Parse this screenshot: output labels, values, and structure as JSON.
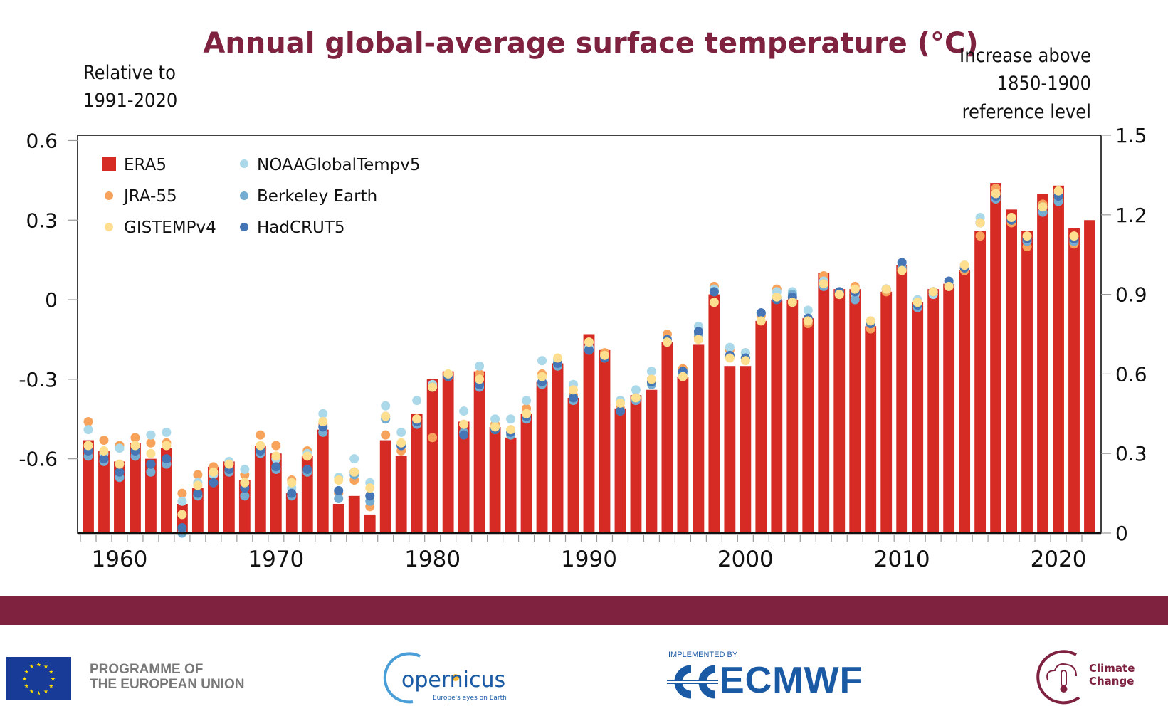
{
  "chart_data": {
    "type": "bar",
    "title": "Annual global-average surface temperature (°C)",
    "left_axis_label_lines": [
      "Relative to",
      "1991-2020"
    ],
    "right_axis_label_lines": [
      "Increase above",
      "1850-1900",
      "reference level"
    ],
    "xlabel": "",
    "ylabel": "Relative to 1991-2020",
    "ylim": [
      -0.88,
      0.62
    ],
    "y_ticks": [
      0.6,
      0.3,
      0,
      -0.3,
      -0.6
    ],
    "y_tick_labels": [
      "0.6",
      "0.3",
      "0",
      "-0.3",
      "-0.6"
    ],
    "right_axis_offset": 0.88,
    "right_y_ticks": [
      1.5,
      1.2,
      0.9,
      0.6,
      0.3,
      0
    ],
    "right_y_tick_labels": [
      "1.5",
      "1.2",
      "0.9",
      "0.6",
      "0.3",
      "0"
    ],
    "x_tick_labels": [
      "1960",
      "1970",
      "1980",
      "1990",
      "2000",
      "2010",
      "2020"
    ],
    "x_ticks": [
      1960,
      1970,
      1980,
      1990,
      2000,
      2010,
      2020
    ],
    "grid": false,
    "legend_position": "top-left",
    "years": [
      1958,
      1959,
      1960,
      1961,
      1962,
      1963,
      1964,
      1965,
      1966,
      1967,
      1968,
      1969,
      1970,
      1971,
      1972,
      1973,
      1974,
      1975,
      1976,
      1977,
      1978,
      1979,
      1980,
      1981,
      1982,
      1983,
      1984,
      1985,
      1986,
      1987,
      1988,
      1989,
      1990,
      1991,
      1992,
      1993,
      1994,
      1995,
      1996,
      1997,
      1998,
      1999,
      2000,
      2001,
      2002,
      2003,
      2004,
      2005,
      2006,
      2007,
      2008,
      2009,
      2010,
      2011,
      2012,
      2013,
      2014,
      2015,
      2016,
      2017,
      2018,
      2019,
      2020,
      2021,
      2022
    ],
    "series": [
      {
        "name": "ERA5",
        "kind": "bar",
        "color": "#d52b24",
        "values": [
          -0.53,
          -0.57,
          -0.61,
          -0.54,
          -0.6,
          -0.56,
          -0.77,
          -0.71,
          -0.63,
          -0.61,
          -0.68,
          -0.55,
          -0.58,
          -0.73,
          -0.59,
          -0.49,
          -0.77,
          -0.74,
          -0.81,
          -0.53,
          -0.59,
          -0.43,
          -0.3,
          -0.27,
          -0.46,
          -0.27,
          -0.48,
          -0.52,
          -0.43,
          -0.31,
          -0.24,
          -0.37,
          -0.13,
          -0.19,
          -0.41,
          -0.36,
          -0.34,
          -0.16,
          -0.29,
          -0.17,
          0.02,
          -0.25,
          -0.25,
          -0.08,
          0.0,
          0.0,
          -0.07,
          0.1,
          0.04,
          0.04,
          -0.1,
          0.03,
          0.13,
          -0.01,
          0.04,
          0.06,
          0.11,
          0.26,
          0.44,
          0.34,
          0.26,
          0.4,
          0.43,
          0.27,
          0.3
        ]
      },
      {
        "name": "JRA-55",
        "kind": "dot",
        "color": "#f7a35c",
        "values": [
          -0.46,
          -0.53,
          -0.55,
          -0.52,
          -0.54,
          -0.54,
          -0.73,
          -0.66,
          -0.63,
          -0.62,
          -0.66,
          -0.51,
          -0.55,
          -0.68,
          -0.57,
          -0.47,
          -0.73,
          -0.68,
          -0.78,
          -0.51,
          -0.57,
          -0.45,
          -0.52,
          -0.29,
          -0.47,
          -0.28,
          -0.47,
          -0.51,
          -0.41,
          -0.28,
          -0.25,
          -0.36,
          -0.16,
          -0.2,
          -0.41,
          -0.37,
          -0.3,
          -0.13,
          -0.26,
          -0.14,
          0.05,
          -0.19,
          -0.2,
          -0.06,
          0.04,
          0.0,
          -0.09,
          0.09,
          0.03,
          0.05,
          -0.11,
          0.03,
          0.11,
          -0.01,
          0.03,
          0.05,
          0.11,
          0.24,
          0.42,
          0.29,
          0.2,
          0.36,
          0.38,
          0.21,
          null
        ]
      },
      {
        "name": "GISTEMPv4",
        "kind": "dot",
        "color": "#fddf8f",
        "values": [
          -0.55,
          -0.57,
          -0.62,
          -0.55,
          -0.58,
          -0.55,
          -0.81,
          -0.7,
          -0.65,
          -0.62,
          -0.69,
          -0.55,
          -0.59,
          -0.69,
          -0.59,
          -0.46,
          -0.68,
          -0.65,
          -0.71,
          -0.44,
          -0.54,
          -0.45,
          -0.33,
          -0.28,
          -0.47,
          -0.3,
          -0.48,
          -0.49,
          -0.43,
          -0.29,
          -0.22,
          -0.34,
          -0.16,
          -0.21,
          -0.39,
          -0.37,
          -0.3,
          -0.16,
          -0.29,
          -0.15,
          -0.01,
          -0.22,
          -0.23,
          -0.08,
          0.01,
          -0.01,
          -0.08,
          0.06,
          0.02,
          0.04,
          -0.08,
          0.04,
          0.11,
          -0.01,
          0.03,
          0.05,
          0.13,
          0.29,
          0.4,
          0.31,
          0.24,
          0.35,
          0.41,
          0.24,
          null
        ]
      },
      {
        "name": "NOAAGlobalTempv5",
        "kind": "dot",
        "color": "#abd9e9",
        "values": [
          -0.49,
          -0.58,
          -0.56,
          -0.55,
          -0.51,
          -0.5,
          -0.76,
          -0.69,
          -0.66,
          -0.61,
          -0.64,
          -0.57,
          -0.6,
          -0.71,
          -0.58,
          -0.43,
          -0.67,
          -0.6,
          -0.69,
          -0.4,
          -0.5,
          -0.38,
          -0.32,
          -0.29,
          -0.42,
          -0.25,
          -0.45,
          -0.45,
          -0.38,
          -0.23,
          -0.23,
          -0.32,
          -0.18,
          -0.22,
          -0.38,
          -0.34,
          -0.27,
          -0.15,
          -0.28,
          -0.1,
          0.04,
          -0.18,
          -0.2,
          -0.05,
          0.03,
          0.03,
          -0.04,
          0.07,
          0.03,
          0.02,
          -0.08,
          0.04,
          0.12,
          0.0,
          0.02,
          0.06,
          0.13,
          0.31,
          0.38,
          0.3,
          0.23,
          0.33,
          0.4,
          0.22,
          null
        ]
      },
      {
        "name": "Berkeley Earth",
        "kind": "dot",
        "color": "#74add1",
        "values": [
          -0.59,
          -0.61,
          -0.67,
          -0.59,
          -0.65,
          -0.62,
          -0.88,
          -0.74,
          -0.69,
          -0.65,
          -0.74,
          -0.58,
          -0.64,
          -0.74,
          -0.65,
          -0.5,
          -0.75,
          -0.66,
          -0.76,
          -0.45,
          -0.55,
          -0.47,
          -0.33,
          -0.29,
          -0.5,
          -0.33,
          -0.49,
          -0.51,
          -0.45,
          -0.32,
          -0.25,
          -0.38,
          -0.19,
          -0.22,
          -0.42,
          -0.38,
          -0.32,
          -0.16,
          -0.28,
          -0.13,
          0.03,
          -0.21,
          -0.22,
          -0.05,
          0.01,
          0.02,
          -0.08,
          0.05,
          0.02,
          0.0,
          -0.09,
          0.04,
          0.12,
          -0.03,
          0.03,
          0.05,
          0.12,
          0.29,
          0.38,
          0.3,
          0.22,
          0.33,
          0.37,
          0.22,
          null
        ]
      },
      {
        "name": "HadCRUT5",
        "kind": "dot",
        "color": "#4575b4",
        "values": [
          -0.57,
          -0.6,
          -0.65,
          -0.57,
          -0.62,
          -0.6,
          -0.86,
          -0.73,
          -0.69,
          -0.64,
          -0.71,
          -0.57,
          -0.63,
          -0.73,
          -0.64,
          -0.48,
          -0.72,
          -0.65,
          -0.74,
          -0.44,
          -0.55,
          -0.46,
          -0.33,
          -0.29,
          -0.51,
          -0.32,
          -0.49,
          -0.5,
          -0.44,
          -0.31,
          -0.24,
          -0.37,
          -0.19,
          -0.22,
          -0.42,
          -0.37,
          -0.31,
          -0.15,
          -0.27,
          -0.12,
          0.03,
          -0.21,
          -0.22,
          -0.05,
          0.0,
          0.01,
          -0.07,
          0.06,
          0.03,
          0.03,
          -0.09,
          0.04,
          0.14,
          -0.02,
          0.03,
          0.07,
          0.12,
          0.29,
          0.39,
          0.3,
          0.23,
          0.35,
          0.39,
          0.23,
          null
        ]
      }
    ]
  },
  "footer": {
    "eu_text_line1": "PROGRAMME OF",
    "eu_text_line2": "THE EUROPEAN UNION",
    "copernicus_name": "opernicus",
    "copernicus_tagline": "Europe's eyes on Earth",
    "ecmwf_small": "IMPLEMENTED BY",
    "ecmwf_name": "ECMWF",
    "climate_line1": "Climate",
    "climate_line2": "Change"
  },
  "colors": {
    "brand": "#7e2240",
    "bar": "#d52b24",
    "ecmwf_blue": "#1a5aa5",
    "eu_blue": "#173b96"
  }
}
